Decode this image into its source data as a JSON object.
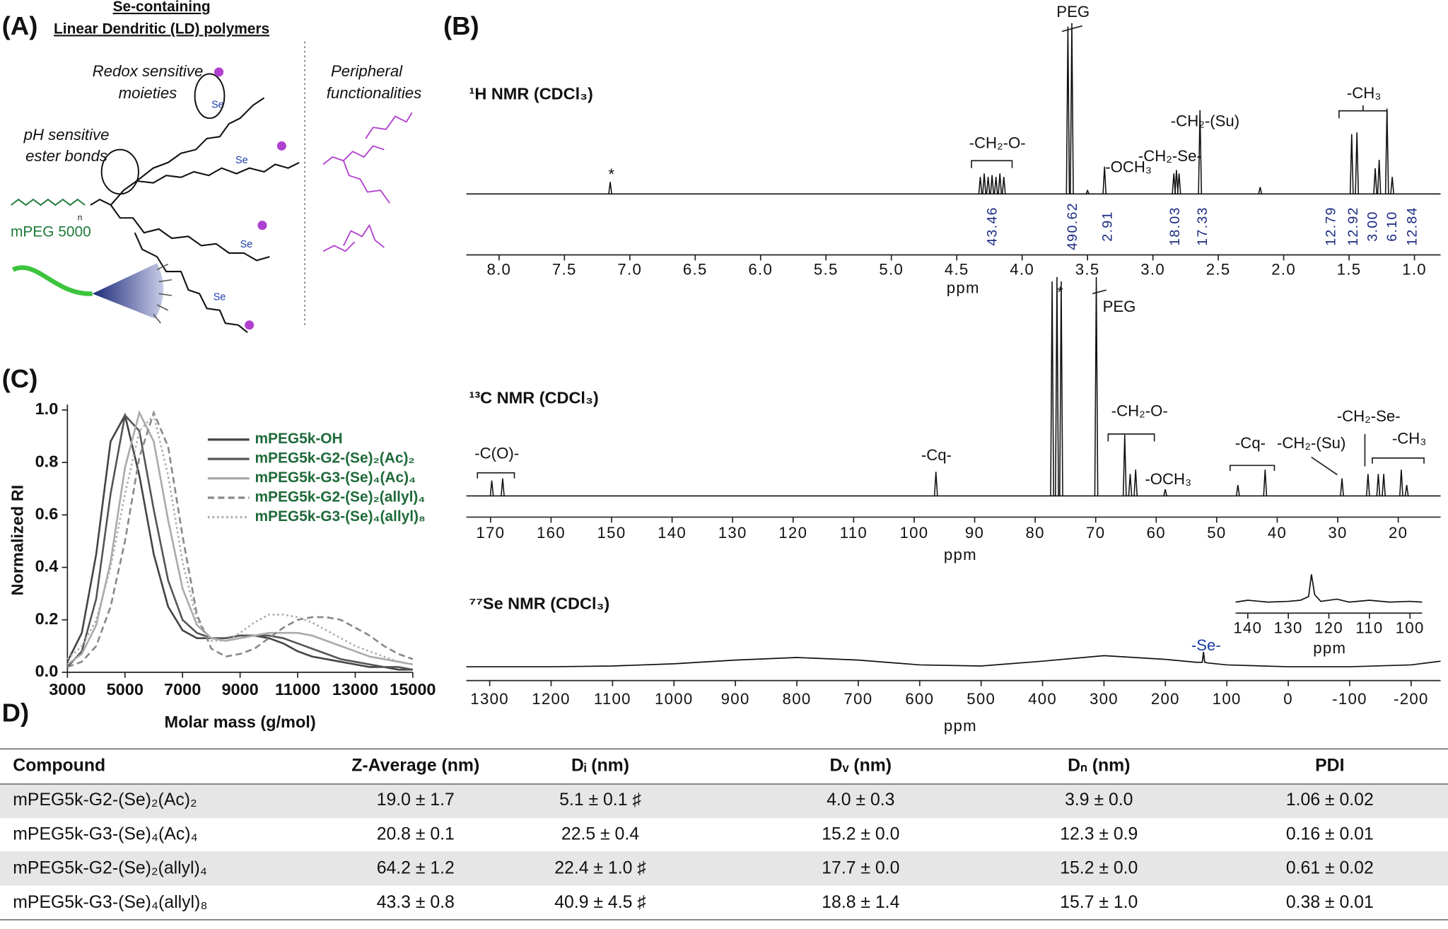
{
  "panel_labels": [
    "(A)",
    "(B)",
    "(C)",
    "D)"
  ],
  "panel_a": {
    "title_lines": [
      "Se-containing",
      "Linear Dendritic (LD) polymers"
    ],
    "labels": [
      "Redox sensitive",
      "moieties",
      "pH sensitive",
      "ester bonds",
      "mPEG 5000",
      "Peripheral",
      "functionalities"
    ],
    "se_labels": [
      "Se",
      "Se",
      "Se",
      "Se"
    ],
    "repeat_label": "n"
  },
  "chart_data": [
    {
      "type": "spectrum",
      "title": "¹H NMR (CDCl₃)",
      "xlabel": "ppm",
      "xlim": [
        8.25,
        0.8
      ],
      "xticks": [
        {
          "value": 8,
          "label": "8.0"
        },
        7.5,
        {
          "value": 7,
          "label": "7.0"
        },
        6.5,
        {
          "value": 6,
          "label": "6.0"
        },
        5.5,
        {
          "value": 5,
          "label": "5.0"
        },
        4.5,
        {
          "value": 4,
          "label": "4.0"
        },
        3.5,
        {
          "value": 3,
          "label": "3.0"
        },
        2.5,
        {
          "value": 2,
          "label": "2.0"
        },
        1.5,
        {
          "value": 1,
          "label": "1.0"
        }
      ],
      "peaks": {
        "x": [
          7.15,
          4.32,
          4.29,
          4.26,
          4.23,
          4.2,
          4.17,
          4.14,
          3.65,
          3.62,
          3.5,
          3.37,
          2.84,
          2.82,
          2.8,
          2.64,
          2.18,
          1.48,
          1.44,
          1.3,
          1.27,
          1.21,
          1.17
        ],
        "values": [
          0.07,
          0.1,
          0.12,
          0.1,
          0.11,
          0.1,
          0.12,
          0.1,
          0.98,
          1.0,
          0.02,
          0.16,
          0.12,
          0.14,
          0.12,
          0.49,
          0.04,
          0.35,
          0.36,
          0.15,
          0.2,
          0.5,
          0.1
        ]
      },
      "integrals": [
        "43.46",
        "490.62",
        "2.91",
        "18.03",
        "17.33",
        "12.79",
        "12.92",
        "3.00",
        "6.10",
        "12.84"
      ],
      "annotations": [
        "PEG",
        "*",
        "-CH₂-O-",
        "-OCH₃",
        "-CH₂-Se-",
        "-CH₂-(Su)",
        "-CH₃"
      ]
    },
    {
      "type": "spectrum",
      "title": "¹³C NMR (CDCl₃)",
      "xlabel": "ppm",
      "xlim": [
        174,
        13
      ],
      "xticks": [
        170,
        160,
        150,
        140,
        130,
        120,
        110,
        100,
        90,
        80,
        70,
        60,
        50,
        40,
        30,
        20
      ],
      "peaks": {
        "x": [
          169.8,
          168.0,
          96.4,
          77.2,
          76.4,
          75.7,
          69.9,
          65.2,
          64.3,
          63.4,
          58.5,
          46.5,
          42.0,
          29.3,
          25.0,
          23.3,
          22.4,
          19.5,
          18.6
        ],
        "values": [
          0.07,
          0.08,
          0.11,
          0.98,
          1.0,
          0.98,
          1.0,
          0.28,
          0.1,
          0.12,
          0.03,
          0.05,
          0.12,
          0.08,
          0.1,
          0.1,
          0.1,
          0.12,
          0.05
        ]
      },
      "annotations": [
        "*",
        "PEG",
        "-C(O)-",
        "-Cq-",
        "-CH₂-O-",
        "-OCH₃",
        "-Cq-",
        "-CH₂-(Su)",
        "-CH₂-Se-",
        "-CH₃"
      ]
    },
    {
      "type": "line",
      "title": "⁷⁷Se NMR (CDCl₃)",
      "xlabel": "ppm",
      "xlim": [
        1338,
        -248
      ],
      "xticks": [
        1300,
        1200,
        1100,
        1000,
        900,
        800,
        700,
        600,
        500,
        400,
        300,
        200,
        100,
        0,
        -100,
        -200
      ],
      "x": [
        1338,
        1300,
        1200,
        1100,
        1000,
        900,
        800,
        700,
        600,
        500,
        400,
        300,
        200,
        150,
        140,
        138,
        136,
        130,
        100,
        0,
        -100,
        -200,
        -248
      ],
      "values": [
        0.2,
        0.2,
        0.2,
        0.22,
        0.28,
        0.38,
        0.45,
        0.38,
        0.25,
        0.22,
        0.35,
        0.5,
        0.4,
        0.32,
        0.32,
        0.6,
        0.32,
        0.3,
        0.25,
        0.2,
        0.2,
        0.25,
        0.35
      ],
      "annotations": [
        "-Se-"
      ]
    },
    {
      "type": "line",
      "xlabel": "ppm",
      "xlim": [
        143,
        97
      ],
      "xticks": [
        140,
        130,
        120,
        110,
        100
      ],
      "x": [
        143,
        140,
        135,
        130,
        127,
        125,
        124.3,
        123.5,
        122,
        118,
        115,
        110,
        105,
        100,
        97
      ],
      "values": [
        0.2,
        0.25,
        0.2,
        0.22,
        0.25,
        0.35,
        0.95,
        0.4,
        0.22,
        0.28,
        0.2,
        0.25,
        0.2,
        0.22,
        0.2
      ]
    },
    {
      "type": "line",
      "xlabel": "Molar mass (g/mol)",
      "ylabel": "Normalized RI",
      "xlim": [
        3000,
        15000
      ],
      "ylim": [
        0,
        1
      ],
      "xticks": [
        3000,
        5000,
        7000,
        9000,
        11000,
        13000,
        15000
      ],
      "yticks": [
        {
          "value": 0,
          "label": "0.0"
        },
        0.2,
        0.4,
        0.6,
        0.8,
        {
          "value": 1,
          "label": "1.0"
        }
      ],
      "x": [
        3000,
        3500,
        4000,
        4500,
        5000,
        5500,
        6000,
        6500,
        7000,
        7500,
        8000,
        8500,
        9000,
        9500,
        10000,
        10500,
        11000,
        11500,
        12000,
        12500,
        13000,
        13500,
        14000,
        14500,
        15000
      ],
      "series": [
        {
          "name": "mPEG5k-OH",
          "color": "#444444",
          "dash": "solid",
          "values": [
            0.04,
            0.15,
            0.45,
            0.88,
            0.98,
            0.75,
            0.45,
            0.25,
            0.16,
            0.13,
            0.13,
            0.13,
            0.14,
            0.14,
            0.13,
            0.11,
            0.08,
            0.06,
            0.05,
            0.04,
            0.03,
            0.02,
            0.02,
            0.01,
            0.01
          ]
        },
        {
          "name": "mPEG5k-G2-(Se)₂(Ac)₂",
          "color": "#555555",
          "dash": "solid",
          "values": [
            0.02,
            0.08,
            0.28,
            0.68,
            0.98,
            0.92,
            0.62,
            0.35,
            0.2,
            0.15,
            0.13,
            0.13,
            0.14,
            0.14,
            0.14,
            0.13,
            0.11,
            0.09,
            0.07,
            0.05,
            0.04,
            0.03,
            0.02,
            0.02,
            0.01
          ]
        },
        {
          "name": "mPEG5k-G3-(Se)₄(Ac)₄",
          "color": "#aaaaaa",
          "dash": "solid",
          "values": [
            0.03,
            0.07,
            0.18,
            0.42,
            0.78,
            0.99,
            0.88,
            0.58,
            0.32,
            0.18,
            0.13,
            0.12,
            0.13,
            0.14,
            0.15,
            0.15,
            0.15,
            0.14,
            0.12,
            0.1,
            0.08,
            0.06,
            0.05,
            0.04,
            0.03
          ]
        },
        {
          "name": "mPEG5k-G2-(Se)₂(allyl)₄",
          "color": "#888888",
          "dash": "dashed",
          "values": [
            0.02,
            0.04,
            0.1,
            0.25,
            0.5,
            0.82,
            0.99,
            0.86,
            0.52,
            0.22,
            0.09,
            0.06,
            0.07,
            0.09,
            0.13,
            0.17,
            0.2,
            0.21,
            0.21,
            0.2,
            0.17,
            0.14,
            0.1,
            0.07,
            0.05
          ]
        },
        {
          "name": "mPEG5k-G3-(Se)₄(allyl)₈",
          "color": "#aaaaaa",
          "dash": "dotted",
          "values": [
            0.05,
            0.1,
            0.2,
            0.4,
            0.68,
            0.92,
            0.98,
            0.75,
            0.42,
            0.2,
            0.12,
            0.12,
            0.15,
            0.19,
            0.22,
            0.22,
            0.21,
            0.19,
            0.16,
            0.13,
            0.1,
            0.08,
            0.06,
            0.04,
            0.03
          ]
        }
      ]
    }
  ],
  "table": {
    "header": [
      "Compound",
      "Z-Average (nm)",
      "Dᵢ (nm)",
      "Dᵥ (nm)",
      "Dₙ (nm)",
      "PDI"
    ],
    "rows": [
      [
        "mPEG5k-G2-(Se)₂(Ac)₂",
        "19.0 ± 1.7",
        "5.1 ± 0.1 ♯",
        "4.0 ± 0.3",
        "3.9 ± 0.0",
        "1.06 ± 0.02"
      ],
      [
        "mPEG5k-G3-(Se)₄(Ac)₄",
        "20.8 ± 0.1",
        "22.5 ± 0.4",
        "15.2 ± 0.0",
        "12.3 ± 0.9",
        "0.16 ± 0.01"
      ],
      [
        "mPEG5k-G2-(Se)₂(allyl)₄",
        "64.2 ± 1.2",
        "22.4 ± 1.0 ♯",
        "17.7 ± 0.0",
        "15.2 ± 0.0",
        "0.61 ± 0.02"
      ],
      [
        "mPEG5k-G3-(Se)₄(allyl)₈",
        "43.3  ± 0.8",
        "40.9 ± 4.5 ♯",
        "18.8 ± 1.4",
        "15.7 ± 1.0",
        "0.38 ± 0.01"
      ]
    ]
  }
}
